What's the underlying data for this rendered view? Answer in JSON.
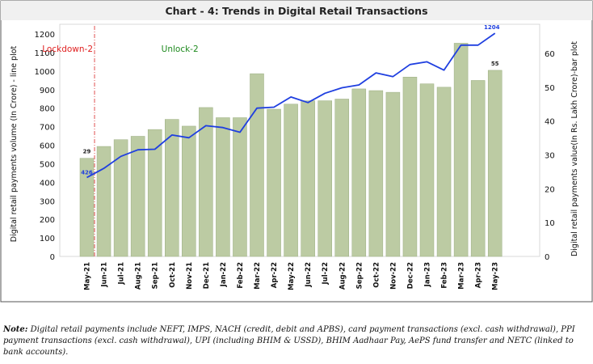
{
  "chart_data": {
    "type": "bar",
    "title": "Chart - 4: Trends in Digital Retail Transactions",
    "ylabel_left": "Digital retail payments volume (In Crore) - line plot",
    "ylabel_right": "Digital retail payments value(In Rs. Lakh Crore)-bar plot",
    "categories": [
      "May-21",
      "Jun-21",
      "Jul-21",
      "Aug-21",
      "Sep-21",
      "Oct-21",
      "Nov-21",
      "Dec-21",
      "Jan-22",
      "Feb-22",
      "Mar-22",
      "Apr-22",
      "May-22",
      "Jun-22",
      "Jul-22",
      "Aug-22",
      "Sep-22",
      "Oct-22",
      "Nov-22",
      "Dec-22",
      "Jan-23",
      "Feb-23",
      "Mar-23",
      "Apr-23",
      "May-23"
    ],
    "series": [
      {
        "name": "",
        "type": "bar",
        "axis": "right",
        "color": "#bccba3",
        "values": [
          29,
          32.5,
          34.5,
          35.5,
          37.5,
          40.5,
          38.5,
          44,
          41,
          41,
          54,
          43.5,
          45,
          46,
          46,
          46.5,
          49.5,
          49,
          48.5,
          53,
          51,
          50,
          63,
          52,
          55
        ]
      },
      {
        "name": "",
        "type": "line",
        "axis": "left",
        "color": "#1f3fe0",
        "values": [
          426,
          475,
          540,
          575,
          578,
          655,
          640,
          705,
          695,
          670,
          800,
          805,
          860,
          830,
          880,
          910,
          925,
          990,
          970,
          1035,
          1050,
          1005,
          1140,
          1140,
          1204
        ]
      }
    ],
    "data_labels": {
      "first_bar": "29",
      "last_bar": "55",
      "first_point": "426",
      "last_point": "1204"
    },
    "ylim_left": [
      0,
      1200
    ],
    "ylim_right": [
      0,
      65
    ],
    "yticks_left": [
      0,
      100,
      200,
      300,
      400,
      500,
      600,
      700,
      800,
      900,
      1000,
      1100,
      1200
    ],
    "yticks_right": [
      0,
      10,
      20,
      30,
      40,
      50,
      60
    ],
    "annotations": [
      {
        "text": "Lockdown-2",
        "color": "#e02020",
        "category": "Jun-21"
      },
      {
        "text": "Unlock-2",
        "color": "#1e8a1e",
        "category": "Aug-21"
      }
    ],
    "grid": false,
    "legend": "none",
    "colors": {
      "bar": "#bccba3",
      "bar_stroke": "#9aad80",
      "line": "#1f3fe0",
      "title": "#222222",
      "lockdown_line": "#e05050"
    }
  },
  "note": {
    "label": "Note:",
    "text": "Digital retail payments include NEFT, IMPS, NACH (credit, debit and APBS), card payment transactions (excl. cash withdrawal), PPI payment transactions (excl. cash withdrawal), UPI (including BHIM & USSD), BHIM Aadhaar Pay, AePS fund transfer and NETC (linked to bank accounts)."
  }
}
